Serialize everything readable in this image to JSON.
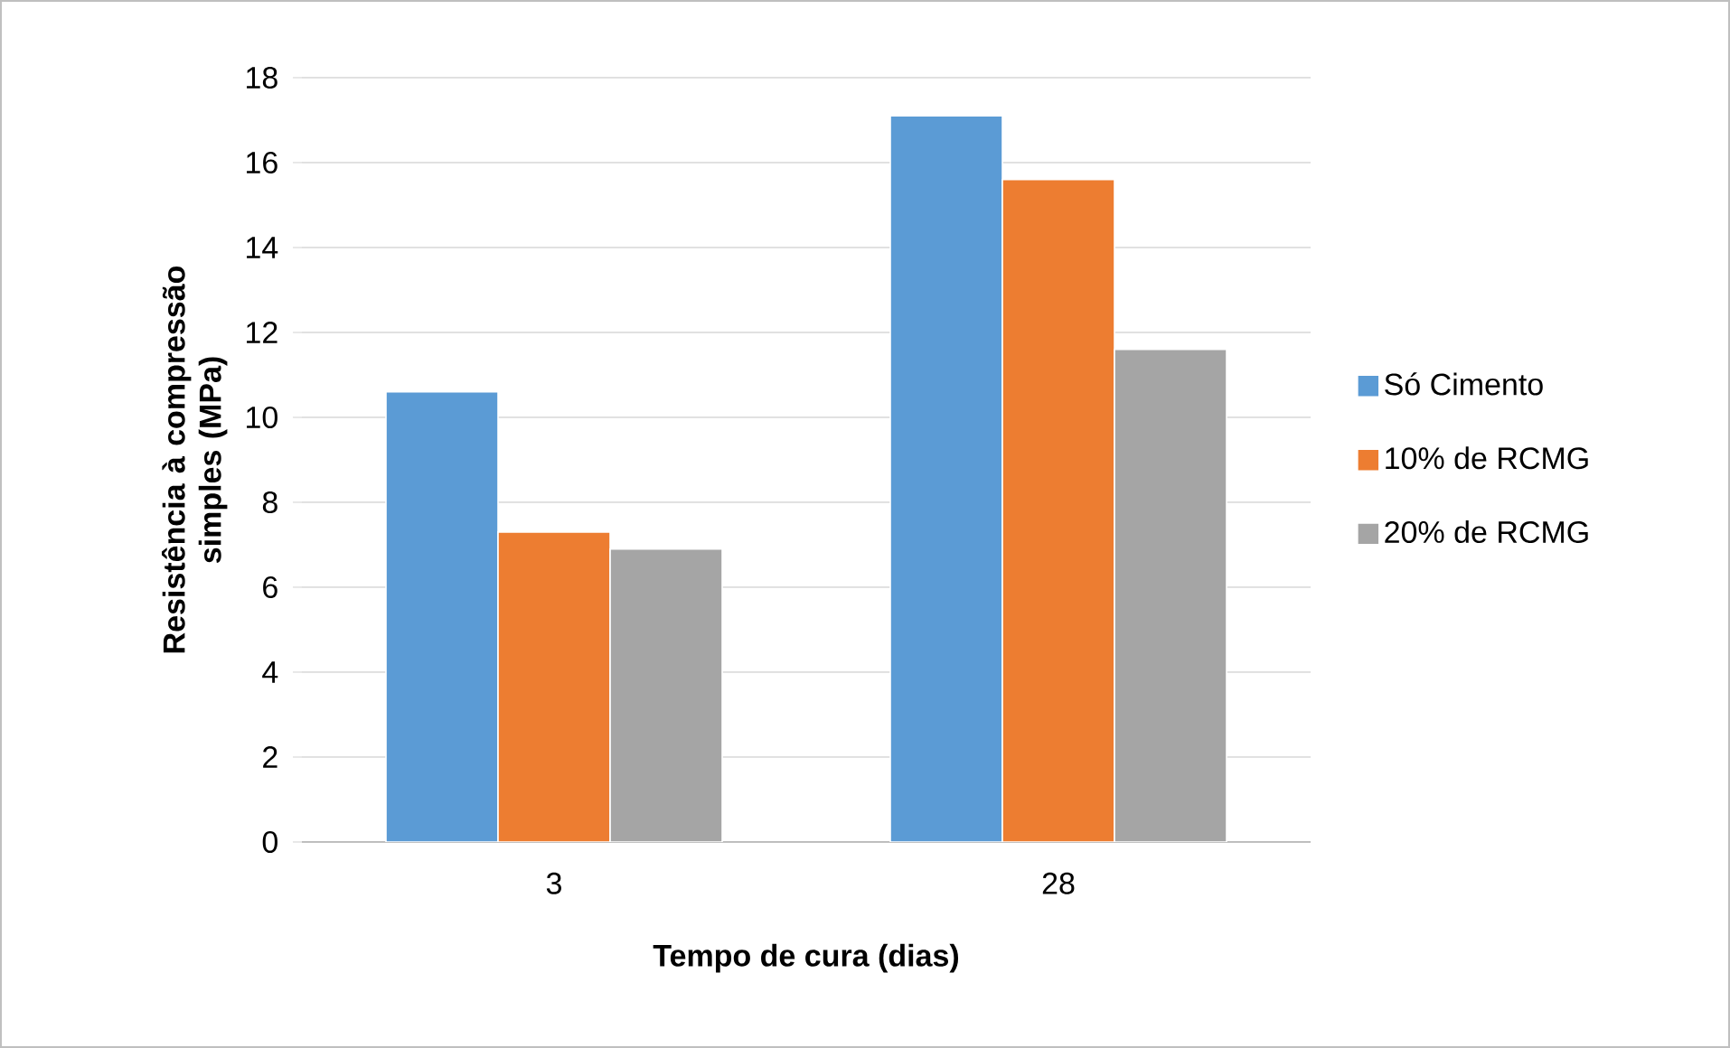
{
  "chart_data": {
    "type": "bar",
    "xlabel": "Tempo de cura (dias)",
    "ylabel": "Resistência à compressão simples (MPa)",
    "categories": [
      "3",
      "28"
    ],
    "series": [
      {
        "name": "Só Cimento",
        "color": "#5b9bd5",
        "values": [
          10.6,
          17.1
        ]
      },
      {
        "name": "10% de RCMG",
        "color": "#ed7d31",
        "values": [
          7.3,
          15.6
        ]
      },
      {
        "name": "20% de RCMG",
        "color": "#a5a5a5",
        "values": [
          6.9,
          11.6
        ]
      }
    ],
    "ylim": [
      0,
      18
    ],
    "yticks": [
      0,
      2,
      4,
      6,
      8,
      10,
      12,
      14,
      16,
      18
    ],
    "grid": "y",
    "legend": "right"
  }
}
